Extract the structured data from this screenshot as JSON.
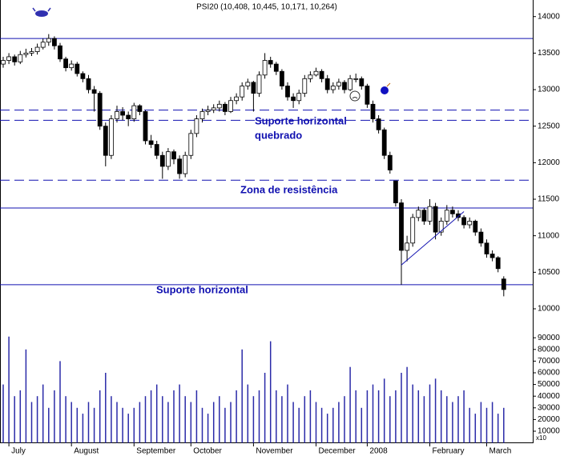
{
  "chart_data": [
    {
      "type": "candlestick",
      "title": "PSI20 (10,408, 10,445, 10,171, 10,264)",
      "categories": [
        null,
        "July",
        null,
        null,
        null,
        null,
        null,
        null,
        null,
        null,
        null,
        null,
        "August",
        null,
        null,
        null,
        null,
        null,
        null,
        null,
        null,
        null,
        null,
        "September",
        null,
        null,
        null,
        null,
        null,
        null,
        null,
        null,
        null,
        "October",
        null,
        null,
        null,
        null,
        null,
        null,
        null,
        null,
        null,
        null,
        "November",
        null,
        null,
        null,
        null,
        null,
        null,
        null,
        null,
        null,
        null,
        "December",
        null,
        null,
        null,
        null,
        null,
        null,
        null,
        null,
        "2008",
        null,
        null,
        null,
        null,
        null,
        null,
        null,
        null,
        null,
        null,
        "February",
        null,
        null,
        null,
        null,
        null,
        null,
        null,
        null,
        null,
        "March",
        null,
        null,
        null
      ],
      "open": [
        13350,
        13400,
        13450,
        13380,
        13480,
        13500,
        13520,
        13580,
        13650,
        13700,
        13600,
        13420,
        13300,
        13350,
        13220,
        13150,
        13000,
        12950,
        12500,
        12100,
        12600,
        12700,
        12650,
        12600,
        12780,
        12700,
        12300,
        12250,
        12100,
        11950,
        12150,
        12050,
        11850,
        12100,
        12400,
        12600,
        12700,
        12720,
        12750,
        12800,
        12700,
        12850,
        12900,
        13050,
        13100,
        12950,
        13200,
        13400,
        13350,
        13250,
        13050,
        12900,
        12850,
        12950,
        13150,
        13200,
        13250,
        13150,
        13000,
        13050,
        13100,
        13000,
        13150,
        13150,
        13050,
        12800,
        12600,
        12450,
        12100,
        11750,
        11450,
        10800,
        10900,
        11250,
        11350,
        11200,
        11400,
        11050,
        11200,
        11350,
        11300,
        11250,
        11150,
        11200,
        11050,
        10900,
        10750,
        10700,
        10408
      ],
      "high": [
        13450,
        13500,
        13480,
        13530,
        13560,
        13570,
        13630,
        13700,
        13760,
        13730,
        13640,
        13450,
        13400,
        13380,
        13250,
        13200,
        13050,
        12980,
        12550,
        12650,
        12780,
        12760,
        12700,
        12820,
        12800,
        12720,
        12380,
        12300,
        12150,
        12200,
        12180,
        12100,
        12150,
        12450,
        12650,
        12740,
        12780,
        12800,
        12850,
        12830,
        12900,
        12950,
        13100,
        13150,
        13120,
        13250,
        13500,
        13450,
        13380,
        13280,
        13100,
        12950,
        13000,
        13200,
        13250,
        13300,
        13280,
        13200,
        13100,
        13150,
        13130,
        13200,
        13220,
        13180,
        13080,
        12850,
        12650,
        12480,
        12150,
        11750,
        11500,
        11000,
        11300,
        11400,
        11380,
        11500,
        11450,
        11250,
        11420,
        11400,
        11350,
        11280,
        11250,
        11220,
        11100,
        10950,
        10800,
        10720,
        10445
      ],
      "low": [
        13300,
        13350,
        13330,
        13350,
        13440,
        13460,
        13480,
        13550,
        13600,
        13550,
        13380,
        13250,
        13260,
        13180,
        13100,
        12950,
        12700,
        12450,
        11950,
        12050,
        12550,
        12580,
        12500,
        12560,
        12650,
        12250,
        12200,
        12050,
        11780,
        11900,
        11980,
        11780,
        11800,
        12050,
        12350,
        12550,
        12650,
        12680,
        12700,
        12650,
        12680,
        12800,
        12850,
        13000,
        12700,
        12900,
        13150,
        13300,
        13200,
        13000,
        12850,
        12750,
        12800,
        12900,
        13100,
        13180,
        13100,
        12950,
        12950,
        13000,
        12950,
        12980,
        13100,
        13000,
        12750,
        12550,
        12400,
        12050,
        11850,
        11400,
        10330,
        10650,
        10850,
        11200,
        11150,
        11150,
        10950,
        11000,
        11150,
        11250,
        11200,
        11100,
        11100,
        11000,
        10850,
        10700,
        10650,
        10500,
        10171
      ],
      "close": [
        13400,
        13450,
        13380,
        13480,
        13500,
        13520,
        13580,
        13650,
        13700,
        13600,
        13420,
        13300,
        13350,
        13220,
        13150,
        13000,
        12950,
        12500,
        12100,
        12600,
        12700,
        12650,
        12600,
        12780,
        12700,
        12300,
        12250,
        12100,
        11950,
        12150,
        12050,
        11850,
        12100,
        12400,
        12600,
        12700,
        12720,
        12750,
        12800,
        12700,
        12850,
        12900,
        13050,
        13100,
        12950,
        13200,
        13400,
        13350,
        13250,
        13050,
        12900,
        12850,
        12950,
        13150,
        13200,
        13250,
        13150,
        13000,
        13050,
        13100,
        13000,
        13150,
        13150,
        13050,
        12800,
        12600,
        12450,
        12100,
        11900,
        11450,
        10800,
        10900,
        11250,
        11350,
        11200,
        11400,
        11050,
        11200,
        11350,
        11300,
        11250,
        11150,
        11200,
        11050,
        10900,
        10750,
        10700,
        10550,
        10264
      ],
      "ylim": [
        10000,
        14100
      ],
      "yticks": [
        10000,
        10500,
        11000,
        11500,
        12000,
        12500,
        13000,
        13500,
        14000
      ],
      "levels": [
        {
          "value": 13700,
          "style": "solid"
        },
        {
          "value": 12720,
          "style": "dashed"
        },
        {
          "value": 12580,
          "style": "dashed"
        },
        {
          "value": 11760,
          "style": "dashed"
        },
        {
          "value": 11380,
          "style": "solid"
        },
        {
          "value": 10330,
          "style": "solid"
        }
      ],
      "trendline": {
        "start": [
          70,
          10600
        ],
        "end": [
          81,
          11330
        ]
      },
      "annotations": [
        [
          "Suporte horizontal",
          "quebrado"
        ],
        [
          "Zona de resistência"
        ],
        [
          "Suporte horizontal"
        ]
      ],
      "color": "#1010b0"
    },
    {
      "type": "volume",
      "values": [
        50000,
        91000,
        40000,
        45000,
        80000,
        35000,
        40000,
        50000,
        30000,
        45000,
        70000,
        40000,
        35000,
        30000,
        25000,
        35000,
        30000,
        45000,
        60000,
        40000,
        35000,
        30000,
        25000,
        30000,
        35000,
        40000,
        45000,
        50000,
        40000,
        35000,
        45000,
        50000,
        40000,
        35000,
        45000,
        30000,
        25000,
        35000,
        40000,
        30000,
        35000,
        45000,
        80000,
        50000,
        40000,
        45000,
        60000,
        87000,
        45000,
        40000,
        50000,
        35000,
        30000,
        40000,
        45000,
        35000,
        30000,
        25000,
        30000,
        35000,
        40000,
        65000,
        45000,
        30000,
        45000,
        50000,
        45000,
        55000,
        40000,
        45000,
        60000,
        65000,
        50000,
        45000,
        40000,
        50000,
        55000,
        45000,
        40000,
        35000,
        40000,
        45000,
        30000,
        25000,
        35000,
        30000,
        35000,
        25000,
        30000
      ],
      "ylim": [
        0,
        100000
      ],
      "yticks": [
        10000,
        20000,
        30000,
        40000,
        50000,
        60000,
        70000,
        80000,
        90000
      ],
      "multiplier_label": "x10",
      "color": "#2a2aa8"
    }
  ]
}
